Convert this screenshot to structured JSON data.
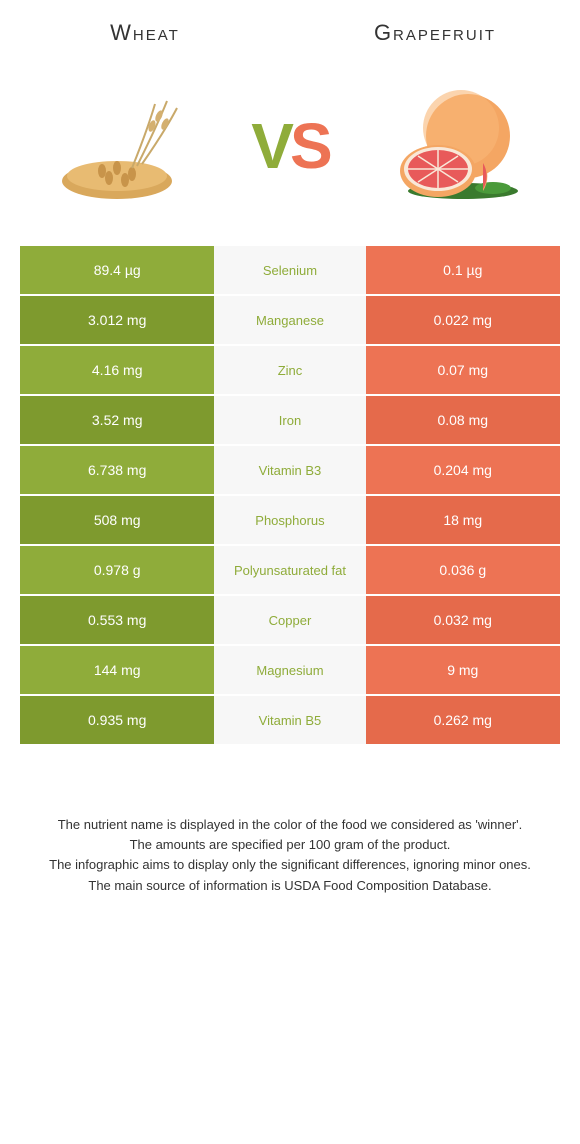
{
  "colors": {
    "wheat": "#8fac3a",
    "wheat_dark": "#7e9a2e",
    "grapefruit": "#ed7354",
    "grapefruit_dark": "#e56a4b",
    "mid_bg": "#f7f7f7",
    "text_white": "#ffffff",
    "text_dark": "#333333"
  },
  "header": {
    "left": "Wheat",
    "right": "Grapefruit",
    "vs_v": "V",
    "vs_s": "S"
  },
  "table": {
    "rows": [
      {
        "left": "89.4 µg",
        "label": "Selenium",
        "right": "0.1 µg",
        "winner": "wheat"
      },
      {
        "left": "3.012 mg",
        "label": "Manganese",
        "right": "0.022 mg",
        "winner": "wheat"
      },
      {
        "left": "4.16 mg",
        "label": "Zinc",
        "right": "0.07 mg",
        "winner": "wheat"
      },
      {
        "left": "3.52 mg",
        "label": "Iron",
        "right": "0.08 mg",
        "winner": "wheat"
      },
      {
        "left": "6.738 mg",
        "label": "Vitamin B3",
        "right": "0.204 mg",
        "winner": "wheat"
      },
      {
        "left": "508 mg",
        "label": "Phosphorus",
        "right": "18 mg",
        "winner": "wheat"
      },
      {
        "left": "0.978 g",
        "label": "Polyunsaturated fat",
        "right": "0.036 g",
        "winner": "wheat"
      },
      {
        "left": "0.553 mg",
        "label": "Copper",
        "right": "0.032 mg",
        "winner": "wheat"
      },
      {
        "left": "144 mg",
        "label": "Magnesium",
        "right": "9 mg",
        "winner": "wheat"
      },
      {
        "left": "0.935 mg",
        "label": "Vitamin B5",
        "right": "0.262 mg",
        "winner": "wheat"
      }
    ]
  },
  "footnotes": [
    "The nutrient name is displayed in the color of the food we considered as 'winner'.",
    "The amounts are specified per 100 gram of the product.",
    "The infographic aims to display only the significant differences, ignoring minor ones.",
    "The main source of information is USDA Food Composition Database."
  ]
}
